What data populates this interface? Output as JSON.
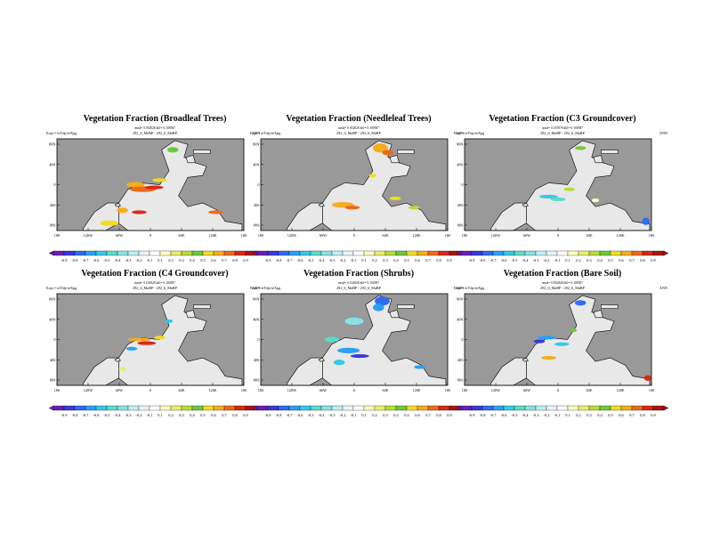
{
  "figure": {
    "experiment_label": "Expt = teYdp-teXpg",
    "run_label": "292_6_MaBP - 292_6_MaBP",
    "season": "ANN",
    "lon_ticks": [
      "180",
      "120W",
      "60W",
      "0",
      "60E",
      "120E",
      "180"
    ],
    "lat_ticks": [
      "80N",
      "40N",
      "0",
      "40S",
      "80S"
    ],
    "colorbar_ticks": [
      "-0.9",
      "-0.8",
      "-0.7",
      "-0.6",
      "-0.5",
      "-0.4",
      "-0.3",
      "-0.2",
      "-0.1",
      "0.1",
      "0.2",
      "0.3",
      "0.4",
      "0.5",
      "0.6",
      "0.7",
      "0.8",
      "0.9"
    ],
    "colorbar_colors": [
      "#6a1fb0",
      "#3c37d8",
      "#2f6cf0",
      "#2aa0f4",
      "#37c8e8",
      "#5adcc8",
      "#8be0e8",
      "#bfeef6",
      "#e8f4f8",
      "#ffffff",
      "#fffcc0",
      "#e6ef6a",
      "#b5dc3a",
      "#6fc83a",
      "#f0dc28",
      "#f4ac22",
      "#ec6a1c",
      "#d8281a",
      "#a81414"
    ],
    "ocean_color": "#999999",
    "land_color": "#e8e8e8"
  },
  "chart_data": [
    {
      "type": "heatmap",
      "title": "Vegetation Fraction (Broadleaf Trees)",
      "stats": "rmsd= 0.952828 diff= 0.109587",
      "xlabel": "",
      "ylabel": "",
      "xlim": [
        -180,
        180
      ],
      "ylim": [
        -90,
        90
      ],
      "clim": [
        -0.9,
        0.9
      ]
    },
    {
      "type": "heatmap",
      "title": "Vegetation Fraction (Needleleaf Trees)",
      "stats": "rmsd= 0.952828 diff= 0.109587",
      "xlabel": "",
      "ylabel": "",
      "xlim": [
        -180,
        180
      ],
      "ylim": [
        -90,
        90
      ],
      "clim": [
        -0.9,
        0.9
      ]
    },
    {
      "type": "heatmap",
      "title": "Vegetation Fraction (C3 Groundcover)",
      "stats": "rmsd= 0.167878 diff= 0.100587",
      "xlabel": "",
      "ylabel": "",
      "xlim": [
        -180,
        180
      ],
      "ylim": [
        -90,
        90
      ],
      "clim": [
        -0.9,
        0.9
      ]
    },
    {
      "type": "heatmap",
      "title": "Vegetation Fraction (C4 Groundcover)",
      "stats": "rmsd= 0.162828 diff= 0.100587",
      "xlabel": "",
      "ylabel": "",
      "xlim": [
        -180,
        180
      ],
      "ylim": [
        -90,
        90
      ],
      "clim": [
        -0.9,
        0.9
      ]
    },
    {
      "type": "heatmap",
      "title": "Vegetation Fraction (Shrubs)",
      "stats": "rmsd= 0.162828 diff= 0.100587",
      "xlabel": "",
      "ylabel": "",
      "xlim": [
        -180,
        180
      ],
      "ylim": [
        -90,
        90
      ],
      "clim": [
        -0.9,
        0.9
      ]
    },
    {
      "type": "heatmap",
      "title": "Vegetation Fraction (Bare Soil)",
      "stats": "rmsd= 0.952828 diff= 0.109587",
      "xlabel": "",
      "ylabel": "",
      "xlim": [
        -180,
        180
      ],
      "ylim": [
        -90,
        90
      ],
      "clim": [
        -0.9,
        0.9
      ]
    }
  ]
}
